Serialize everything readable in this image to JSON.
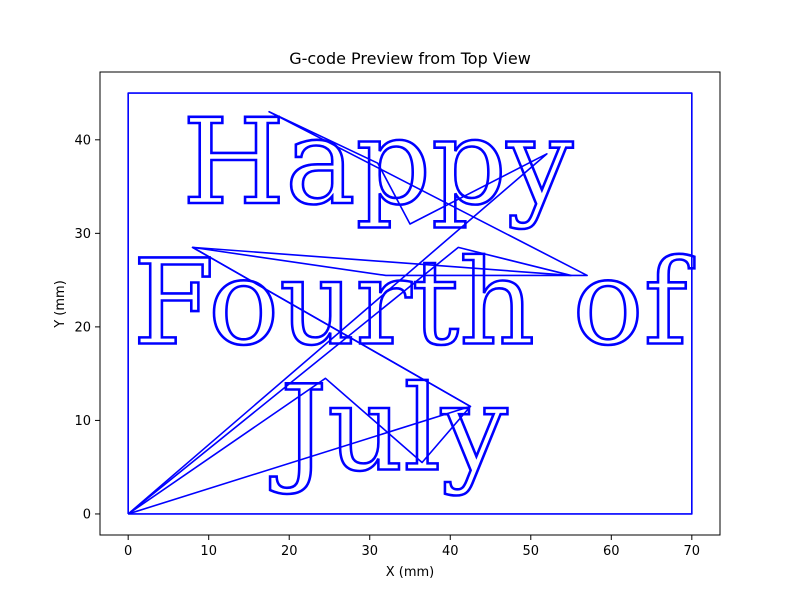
{
  "chart_data": {
    "type": "line",
    "title": "G-code Preview from Top View",
    "xlabel": "X (mm)",
    "ylabel": "Y (mm)",
    "xlim": [
      -3.5,
      73.5
    ],
    "ylim": [
      -2.25,
      47.25
    ],
    "xticks": [
      0,
      10,
      20,
      30,
      40,
      50,
      60,
      70
    ],
    "yticks": [
      0,
      10,
      20,
      30,
      40
    ],
    "grid": false,
    "legend": "none",
    "color": "#0000ff",
    "text_lines": [
      {
        "text": "Happy",
        "x": 31,
        "y": 36.5
      },
      {
        "text": "Fourth of",
        "x": 35,
        "y": 21.5
      },
      {
        "text": "July",
        "x": 33,
        "y": 8
      }
    ],
    "series": [
      {
        "x": [
          0,
          70,
          70,
          0,
          0
        ],
        "y": [
          0,
          0,
          45,
          45,
          0
        ]
      },
      {
        "x": [
          0,
          24.5,
          36.5,
          42.5,
          8,
          32,
          57,
          17.5,
          31,
          35,
          52,
          0
        ],
        "y": [
          0,
          14.5,
          5.5,
          11.5,
          28.5,
          25.5,
          25.5,
          43,
          37.5,
          31,
          38.5,
          0
        ]
      },
      {
        "x": [
          0,
          42.5,
          8,
          55,
          41,
          0
        ],
        "y": [
          0,
          11.5,
          28.5,
          25.5,
          28.5,
          0
        ]
      }
    ]
  }
}
